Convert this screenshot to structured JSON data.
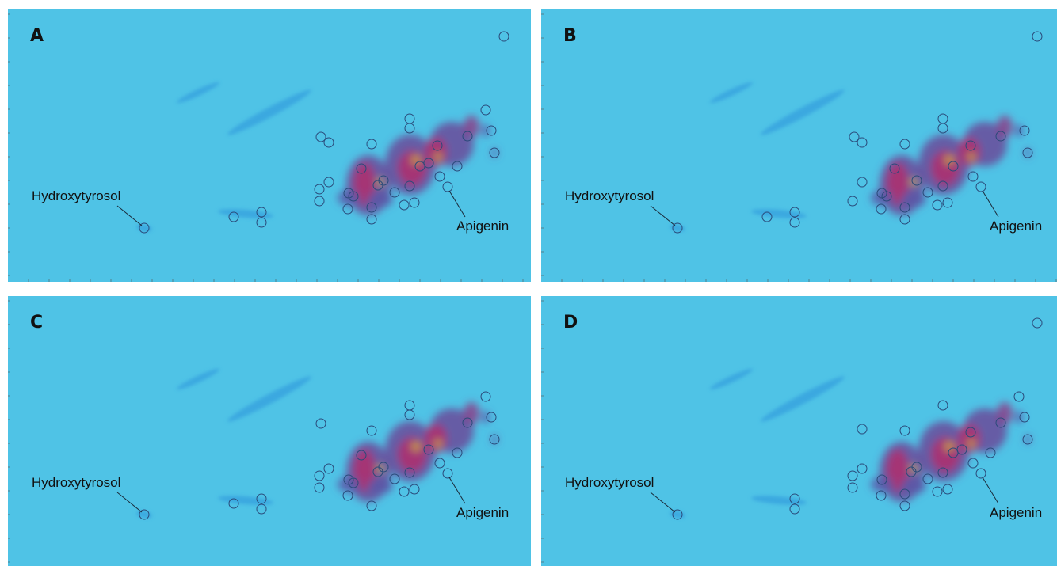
{
  "panels": [
    {
      "label": "A",
      "annotations": [
        "Hydroxytyrosol",
        "Apigenin"
      ]
    },
    {
      "label": "B",
      "annotations": [
        "Hydroxytyrosol",
        "Apigenin"
      ]
    },
    {
      "label": "C",
      "annotations": [
        "Hydroxytyrosol",
        "Apigenin"
      ]
    },
    {
      "label": "D",
      "annotations": [
        "Hydroxytyrosol",
        "Apigenin"
      ]
    }
  ]
}
